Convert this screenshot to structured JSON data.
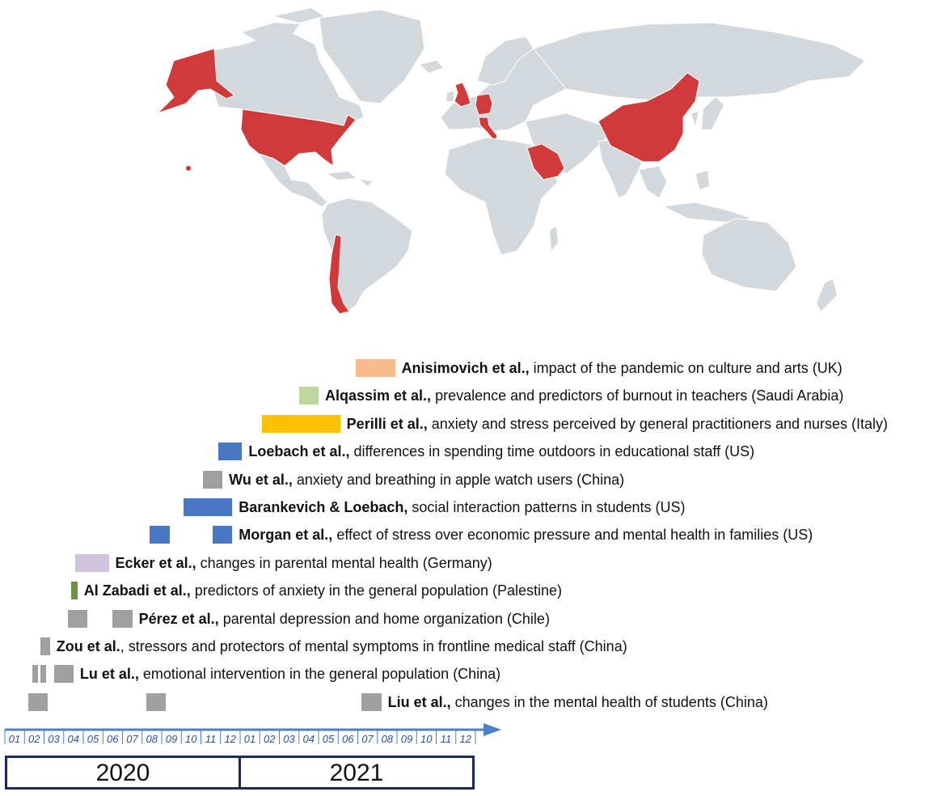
{
  "colors": {
    "highlight": "#d03a3a",
    "land": "#d2d8dc",
    "ocean": "#ffffff",
    "grey_bar": "#a0a0a0",
    "blue_bar": "#4a77c4",
    "orange_bar": "#f7bb8e",
    "green_light_bar": "#bcd89a",
    "yellow_bar": "#ffc000",
    "lavender_bar": "#cfc4e0",
    "olive_bar": "#6a9440",
    "timeline_arrow": "#4a80c8",
    "timeline_month_text": "#2a4fb0",
    "year_border": "#1f2a5c"
  },
  "map": {
    "highlighted_countries": [
      "Alaska (US)",
      "United States",
      "Chile",
      "United Kingdom",
      "Germany",
      "Italy",
      "Saudi Arabia",
      "China"
    ]
  },
  "timeline": {
    "months": [
      "01",
      "02",
      "03",
      "04",
      "05",
      "06",
      "07",
      "08",
      "09",
      "10",
      "11",
      "12",
      "01",
      "02",
      "03",
      "04",
      "05",
      "06",
      "07",
      "08",
      "09",
      "10",
      "11",
      "12"
    ],
    "years": [
      "2020",
      "2021"
    ]
  },
  "studies": [
    {
      "author": "Anisimovich et al.,",
      "desc": " impact of the pandemic on culture and arts (UK)",
      "color": "#f7bb8e",
      "bars": [
        [
          17.9,
          19.9
        ]
      ]
    },
    {
      "author": "Alqassim et al.,",
      "desc": " prevalence and predictors of burnout in teachers (Saudi Arabia)",
      "color": "#bcd89a",
      "bars": [
        [
          15.0,
          16.0
        ]
      ]
    },
    {
      "author": "Perilli et al.,",
      "desc": " anxiety and stress perceived by general practitioners and nurses (Italy)",
      "color": "#ffc000",
      "bars": [
        [
          13.1,
          17.1
        ]
      ]
    },
    {
      "author": "Loebach et al.,",
      "desc": " differences in spending time outdoors in educational staff (US)",
      "color": "#4a77c4",
      "bars": [
        [
          10.9,
          12.1
        ]
      ]
    },
    {
      "author": "Wu et al.,",
      "desc": " anxiety and breathing in apple watch users (China)",
      "color": "#a0a0a0",
      "bars": [
        [
          10.1,
          11.1
        ]
      ]
    },
    {
      "author": "Barankevich & Loebach,",
      "desc": " social interaction patterns in students (US)",
      "color": "#4a77c4",
      "bars": [
        [
          9.1,
          11.6
        ]
      ]
    },
    {
      "author": "Morgan et al.,",
      "desc": " effect of stress over economic pressure and mental health in families (US)",
      "color": "#4a77c4",
      "bars": [
        [
          7.4,
          8.4
        ],
        [
          10.6,
          11.6
        ]
      ]
    },
    {
      "author": "Ecker et al.,",
      "desc": " changes in parental mental health (Germany)",
      "color": "#cfc4e0",
      "bars": [
        [
          3.6,
          5.3
        ]
      ]
    },
    {
      "author": "Al Zabadi et al.,",
      "desc": " predictors of anxiety in the general population (Palestine)",
      "color": "#6a9440",
      "bars": [
        [
          3.4,
          3.7
        ]
      ]
    },
    {
      "author": "Pérez et al.,",
      "desc": " parental depression and home organization (Chile)",
      "color": "#a0a0a0",
      "bars": [
        [
          3.2,
          4.2
        ],
        [
          5.5,
          6.5
        ]
      ]
    },
    {
      "author": "Zou et al.",
      "desc": ", stressors and protectors of mental symptoms in frontline medical staff (China)",
      "color": "#a0a0a0",
      "bars": [
        [
          1.8,
          2.3
        ]
      ]
    },
    {
      "author": "Lu et al.,",
      "desc": " emotional intervention in the general population (China)",
      "color": "#a0a0a0",
      "bars": [
        [
          1.4,
          1.7
        ],
        [
          1.8,
          2.1
        ],
        [
          2.5,
          3.5
        ]
      ]
    },
    {
      "author": "Liu et al.,",
      "desc": " changes in the mental health of students (China)",
      "color": "#a0a0a0",
      "bars": [
        [
          1.2,
          2.2
        ],
        [
          7.2,
          8.2
        ],
        [
          18.2,
          19.2
        ]
      ]
    }
  ]
}
